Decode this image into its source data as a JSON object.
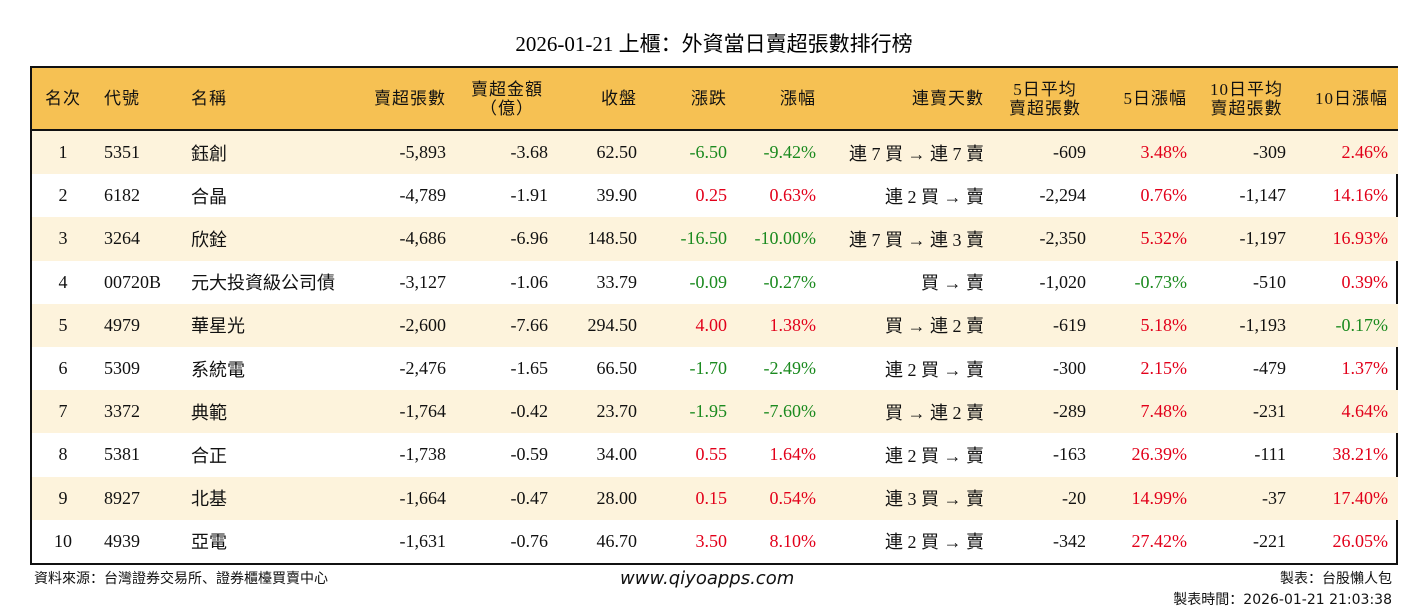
{
  "title": "2026-01-21 上櫃：外資當日賣超張數排行榜",
  "headers": [
    "名次",
    "代號",
    "名稱",
    "賣超張數",
    "賣超金額\n（億）",
    "收盤",
    "漲跌",
    "漲幅",
    "連賣天數",
    "5日平均\n賣超張數",
    "5日漲幅",
    "10日平均\n賣超張數",
    "10日漲幅"
  ],
  "colors": {
    "header": "#F6C153",
    "row_alt": "#FDF3DC",
    "up": "#E2001A",
    "down": "#1B8A1F"
  },
  "rows": [
    [
      "1",
      "5351",
      "鈺創",
      "-5,893",
      "-3.68",
      "62.50",
      "-6.50",
      "-9.42%",
      "連 7 買 → 連 7 賣",
      "-609",
      "3.48%",
      "-309",
      "2.46%"
    ],
    [
      "2",
      "6182",
      "合晶",
      "-4,789",
      "-1.91",
      "39.90",
      "0.25",
      "0.63%",
      "連 2 買 → 賣",
      "-2,294",
      "0.76%",
      "-1,147",
      "14.16%"
    ],
    [
      "3",
      "3264",
      "欣銓",
      "-4,686",
      "-6.96",
      "148.50",
      "-16.50",
      "-10.00%",
      "連 7 買 → 連 3 賣",
      "-2,350",
      "5.32%",
      "-1,197",
      "16.93%"
    ],
    [
      "4",
      "00720B",
      "元大投資級公司債",
      "-3,127",
      "-1.06",
      "33.79",
      "-0.09",
      "-0.27%",
      "買 → 賣",
      "-1,020",
      "-0.73%",
      "-510",
      "0.39%"
    ],
    [
      "5",
      "4979",
      "華星光",
      "-2,600",
      "-7.66",
      "294.50",
      "4.00",
      "1.38%",
      "買 → 連 2 賣",
      "-619",
      "5.18%",
      "-1,193",
      "-0.17%"
    ],
    [
      "6",
      "5309",
      "系統電",
      "-2,476",
      "-1.65",
      "66.50",
      "-1.70",
      "-2.49%",
      "連 2 買 → 賣",
      "-300",
      "2.15%",
      "-479",
      "1.37%"
    ],
    [
      "7",
      "3372",
      "典範",
      "-1,764",
      "-0.42",
      "23.70",
      "-1.95",
      "-7.60%",
      "買 → 連 2 賣",
      "-289",
      "7.48%",
      "-231",
      "4.64%"
    ],
    [
      "8",
      "5381",
      "合正",
      "-1,738",
      "-0.59",
      "34.00",
      "0.55",
      "1.64%",
      "連 2 買 → 賣",
      "-163",
      "26.39%",
      "-111",
      "38.21%"
    ],
    [
      "9",
      "8927",
      "北基",
      "-1,664",
      "-0.47",
      "28.00",
      "0.15",
      "0.54%",
      "連 3 買 → 賣",
      "-20",
      "14.99%",
      "-37",
      "17.40%"
    ],
    [
      "10",
      "4939",
      "亞電",
      "-1,631",
      "-0.76",
      "46.70",
      "3.50",
      "8.10%",
      "連 2 買 → 賣",
      "-342",
      "27.42%",
      "-221",
      "26.05%"
    ]
  ],
  "footer": {
    "source": "資料來源：台灣證券交易所、證券櫃檯買賣中心",
    "site": "www.qiyoapps.com",
    "maker": "製表：台股懶人包",
    "time": "製表時間：2026-01-21 21:03:38"
  }
}
